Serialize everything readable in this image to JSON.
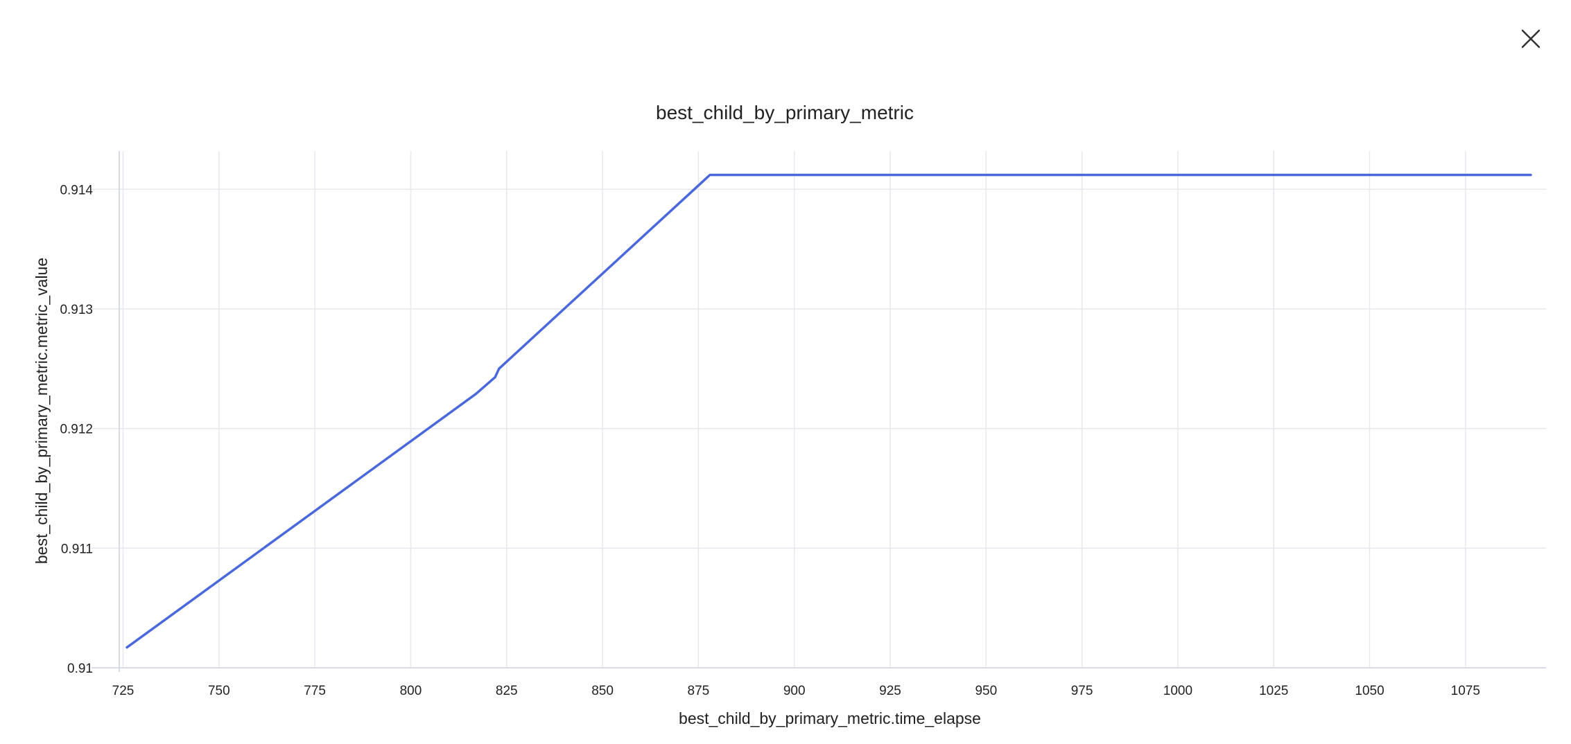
{
  "dialog": {
    "close_icon": "close-icon"
  },
  "chart_data": {
    "type": "line",
    "title": "best_child_by_primary_metric",
    "xlabel": "best_child_by_primary_metric.time_elapse",
    "ylabel": "best_child_by_primary_metric.metric_value",
    "xlim": [
      724,
      1096
    ],
    "ylim": [
      0.91,
      0.91432
    ],
    "x_ticks": [
      725,
      750,
      775,
      800,
      825,
      850,
      875,
      900,
      925,
      950,
      975,
      1000,
      1025,
      1050,
      1075
    ],
    "y_ticks": [
      0.91,
      0.911,
      0.912,
      0.913,
      0.914
    ],
    "y_tick_labels": [
      "0.91",
      "0.911",
      "0.912",
      "0.913",
      "0.914"
    ],
    "grid": true,
    "series": [
      {
        "color": "#4a68dc",
        "x": [
          726,
          817,
          822,
          823,
          878,
          1092
        ],
        "y": [
          0.91017,
          0.91229,
          0.91243,
          0.9125,
          0.91412,
          0.91412
        ]
      }
    ]
  }
}
